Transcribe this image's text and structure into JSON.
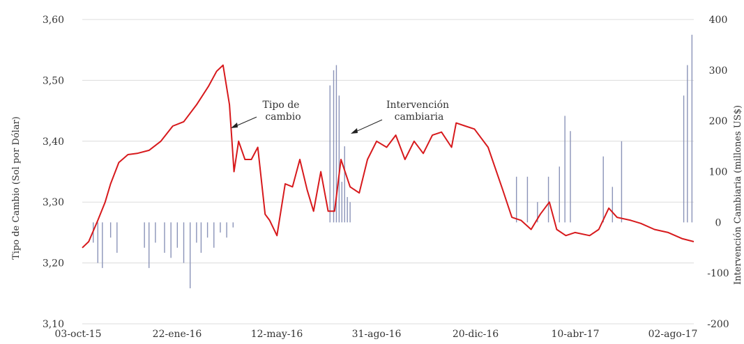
{
  "chart_data": {
    "type": "line",
    "title": "",
    "ylabel": "Tipo de Cambio (Sol por Dólar)",
    "ylabel_right": "Intervención Cambiaria (millones US$)",
    "ylim": [
      3.1,
      3.6
    ],
    "ylim_right": [
      -200,
      400
    ],
    "y_ticks": [
      "3,10",
      "3,20",
      "3,30",
      "3,40",
      "3,50",
      "3,60"
    ],
    "y_ticks_right": [
      "-200",
      "-100",
      "0",
      "100",
      "200",
      "300",
      "400"
    ],
    "x_ticks": [
      "03-oct-15",
      "22-ene-16",
      "12-may-16",
      "31-ago-16",
      "20-dic-16",
      "10-abr-17",
      "02-ago-17"
    ],
    "grid": "horizontal",
    "colors": {
      "exchange_rate": "#d7191c",
      "intervention": "#8a93b8"
    },
    "annotations": [
      {
        "lines": [
          "Tipo de",
          "cambio"
        ]
      },
      {
        "lines": [
          "Intervención",
          "cambiaria"
        ]
      }
    ],
    "series": [
      {
        "axis": "left",
        "kind": "line",
        "x": [
          "2015-10-03",
          "2015-10-10",
          "2015-10-20",
          "2015-10-28",
          "2015-11-03",
          "2015-11-12",
          "2015-11-22",
          "2015-12-02",
          "2015-12-15",
          "2015-12-28",
          "2016-01-10",
          "2016-01-22",
          "2016-02-05",
          "2016-02-18",
          "2016-02-27",
          "2016-03-05",
          "2016-03-12",
          "2016-03-17",
          "2016-03-22",
          "2016-03-29",
          "2016-04-05",
          "2016-04-12",
          "2016-04-20",
          "2016-04-25",
          "2016-05-03",
          "2016-05-12",
          "2016-05-20",
          "2016-05-28",
          "2016-06-05",
          "2016-06-12",
          "2016-06-20",
          "2016-06-28",
          "2016-07-05",
          "2016-07-12",
          "2016-07-22",
          "2016-08-01",
          "2016-08-10",
          "2016-08-20",
          "2016-08-31",
          "2016-09-10",
          "2016-09-20",
          "2016-09-30",
          "2016-10-10",
          "2016-10-20",
          "2016-10-30",
          "2016-11-10",
          "2016-11-15",
          "2016-11-25",
          "2016-12-05",
          "2016-12-20",
          "2017-01-05",
          "2017-01-15",
          "2017-01-25",
          "2017-02-05",
          "2017-02-15",
          "2017-02-25",
          "2017-03-05",
          "2017-03-15",
          "2017-03-25",
          "2017-04-10",
          "2017-04-20",
          "2017-05-01",
          "2017-05-10",
          "2017-05-25",
          "2017-06-05",
          "2017-06-20",
          "2017-07-05",
          "2017-07-20",
          "2017-08-02"
        ],
        "values": [
          3.225,
          3.235,
          3.27,
          3.3,
          3.33,
          3.365,
          3.378,
          3.38,
          3.385,
          3.4,
          3.425,
          3.432,
          3.46,
          3.49,
          3.515,
          3.525,
          3.46,
          3.35,
          3.4,
          3.37,
          3.37,
          3.39,
          3.28,
          3.27,
          3.245,
          3.33,
          3.325,
          3.37,
          3.32,
          3.285,
          3.35,
          3.285,
          3.285,
          3.37,
          3.325,
          3.315,
          3.37,
          3.4,
          3.39,
          3.41,
          3.37,
          3.4,
          3.38,
          3.41,
          3.415,
          3.39,
          3.43,
          3.425,
          3.42,
          3.39,
          3.32,
          3.275,
          3.27,
          3.255,
          3.28,
          3.3,
          3.255,
          3.245,
          3.25,
          3.245,
          3.255,
          3.29,
          3.275,
          3.27,
          3.265,
          3.255,
          3.25,
          3.24,
          3.235
        ]
      },
      {
        "axis": "right",
        "kind": "bar",
        "x": [
          "2015-10-15",
          "2015-10-20",
          "2015-10-25",
          "2015-11-03",
          "2015-11-10",
          "2015-12-10",
          "2015-12-15",
          "2015-12-22",
          "2016-01-01",
          "2016-01-08",
          "2016-01-15",
          "2016-01-22",
          "2016-01-29",
          "2016-02-05",
          "2016-02-10",
          "2016-02-17",
          "2016-02-24",
          "2016-03-02",
          "2016-03-09",
          "2016-03-16",
          "2016-06-30",
          "2016-07-04",
          "2016-07-07",
          "2016-07-10",
          "2016-07-13",
          "2016-07-16",
          "2016-07-19",
          "2016-07-22",
          "2017-01-20",
          "2017-02-01",
          "2017-02-12",
          "2017-02-24",
          "2017-03-08",
          "2017-03-14",
          "2017-03-20",
          "2017-04-25",
          "2017-05-05",
          "2017-05-15",
          "2017-07-22",
          "2017-07-26",
          "2017-07-31"
        ],
        "values": [
          -40,
          -80,
          -90,
          -30,
          -60,
          -50,
          -90,
          -40,
          -60,
          -70,
          -50,
          -80,
          -130,
          -40,
          -60,
          -30,
          -50,
          -20,
          -30,
          -10,
          270,
          300,
          310,
          250,
          80,
          150,
          50,
          40,
          90,
          90,
          40,
          90,
          110,
          210,
          180,
          130,
          70,
          160,
          250,
          310,
          370
        ]
      }
    ]
  }
}
